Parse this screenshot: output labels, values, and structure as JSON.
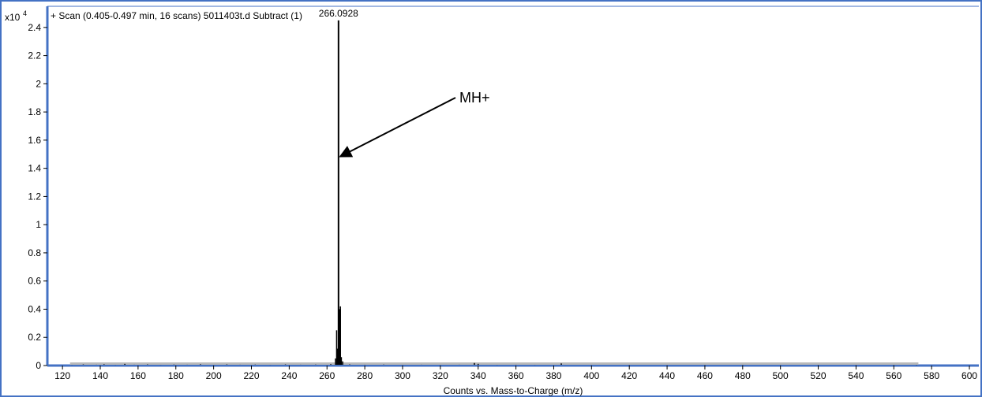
{
  "chart_data": {
    "type": "line",
    "title": "+ Scan (0.405-0.497 min, 16 scans) 5011403t.d  Subtract (1)",
    "y_multiplier_label": "x10",
    "y_multiplier_exponent": "4",
    "xlabel": "Counts vs. Mass-to-Charge (m/z)",
    "ylabel": "",
    "xlim": [
      112,
      605
    ],
    "ylim": [
      0,
      2.55
    ],
    "x_ticks": [
      120,
      140,
      160,
      180,
      200,
      220,
      240,
      260,
      280,
      300,
      320,
      340,
      360,
      380,
      400,
      420,
      440,
      460,
      480,
      500,
      520,
      540,
      560,
      580,
      600
    ],
    "y_ticks": [
      0,
      0.2,
      0.4,
      0.6,
      0.8,
      1,
      1.2,
      1.4,
      1.6,
      1.8,
      2,
      2.2,
      2.4
    ],
    "y_tick_labels": [
      "0",
      "0.2",
      "0.4",
      "0.6",
      "0.8",
      "1",
      "1.2",
      "1.4",
      "1.6",
      "1.8",
      "2",
      "2.2",
      "2.4"
    ],
    "grid": false,
    "series": [
      {
        "peaks": [
          {
            "x": 125,
            "y": 0.005
          },
          {
            "x": 131,
            "y": 0.008
          },
          {
            "x": 138,
            "y": 0.006
          },
          {
            "x": 142,
            "y": 0.009
          },
          {
            "x": 148,
            "y": 0.005
          },
          {
            "x": 153,
            "y": 0.012
          },
          {
            "x": 158,
            "y": 0.006
          },
          {
            "x": 165,
            "y": 0.008
          },
          {
            "x": 172,
            "y": 0.005
          },
          {
            "x": 179,
            "y": 0.007
          },
          {
            "x": 186,
            "y": 0.006
          },
          {
            "x": 193,
            "y": 0.009
          },
          {
            "x": 200,
            "y": 0.005
          },
          {
            "x": 207,
            "y": 0.008
          },
          {
            "x": 214,
            "y": 0.006
          },
          {
            "x": 222,
            "y": 0.007
          },
          {
            "x": 230,
            "y": 0.005
          },
          {
            "x": 238,
            "y": 0.008
          },
          {
            "x": 246,
            "y": 0.006
          },
          {
            "x": 254,
            "y": 0.007
          },
          {
            "x": 262,
            "y": 0.01
          },
          {
            "x": 264.5,
            "y": 0.05
          },
          {
            "x": 265.1,
            "y": 0.25
          },
          {
            "x": 265.6,
            "y": 0.12
          },
          {
            "x": 266.0928,
            "y": 2.45
          },
          {
            "x": 266.6,
            "y": 0.4
          },
          {
            "x": 267.1,
            "y": 0.42
          },
          {
            "x": 267.6,
            "y": 0.06
          },
          {
            "x": 268.3,
            "y": 0.03
          },
          {
            "x": 272,
            "y": 0.008
          },
          {
            "x": 280,
            "y": 0.006
          },
          {
            "x": 290,
            "y": 0.007
          },
          {
            "x": 300,
            "y": 0.005
          },
          {
            "x": 310,
            "y": 0.006
          },
          {
            "x": 320,
            "y": 0.005
          },
          {
            "x": 330,
            "y": 0.006
          },
          {
            "x": 338,
            "y": 0.018
          },
          {
            "x": 340,
            "y": 0.012
          },
          {
            "x": 350,
            "y": 0.005
          },
          {
            "x": 360,
            "y": 0.006
          },
          {
            "x": 370,
            "y": 0.005
          },
          {
            "x": 384,
            "y": 0.015
          },
          {
            "x": 400,
            "y": 0.005
          },
          {
            "x": 420,
            "y": 0.004
          },
          {
            "x": 440,
            "y": 0.005
          },
          {
            "x": 460,
            "y": 0.004
          },
          {
            "x": 480,
            "y": 0.004
          },
          {
            "x": 500,
            "y": 0.005
          },
          {
            "x": 520,
            "y": 0.004
          },
          {
            "x": 540,
            "y": 0.004
          },
          {
            "x": 560,
            "y": 0.004
          },
          {
            "x": 572,
            "y": 0.004
          }
        ]
      }
    ],
    "annotations": [
      {
        "text": "266.0928",
        "x": 266.0928,
        "y": 2.45,
        "kind": "peak-label"
      },
      {
        "text": "MH+",
        "x": 266.0928,
        "y": 1.5,
        "kind": "arrow-callout"
      }
    ]
  },
  "colors": {
    "frame": "#4472c4",
    "axis": "#000000",
    "trace": "#000000",
    "baseline_fill": "#b9b9b9"
  }
}
